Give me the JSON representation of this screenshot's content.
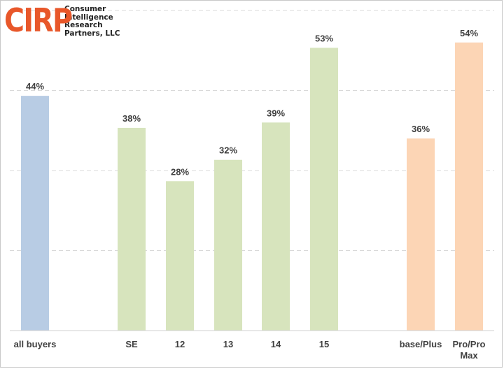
{
  "logo": {
    "mark": "CIRP",
    "lines": [
      "Consumer",
      "Intelligence",
      "Research",
      "Partners, LLC"
    ]
  },
  "chart_data": {
    "type": "bar",
    "categories": [
      "all buyers",
      "SE",
      "12",
      "13",
      "14",
      "15",
      "base/Plus",
      "Pro/Pro Max"
    ],
    "values": [
      44,
      38,
      28,
      32,
      39,
      53,
      36,
      54
    ],
    "value_labels": [
      "44%",
      "38%",
      "28%",
      "32%",
      "39%",
      "53%",
      "36%",
      "54%"
    ],
    "colors": [
      "#b8cce4",
      "#d7e4bd",
      "#d7e4bd",
      "#d7e4bd",
      "#d7e4bd",
      "#d7e4bd",
      "#fcd5b5",
      "#fcd5b5"
    ],
    "ylim": [
      0,
      60
    ],
    "grid": true,
    "title": "",
    "xlabel": "",
    "ylabel": ""
  }
}
